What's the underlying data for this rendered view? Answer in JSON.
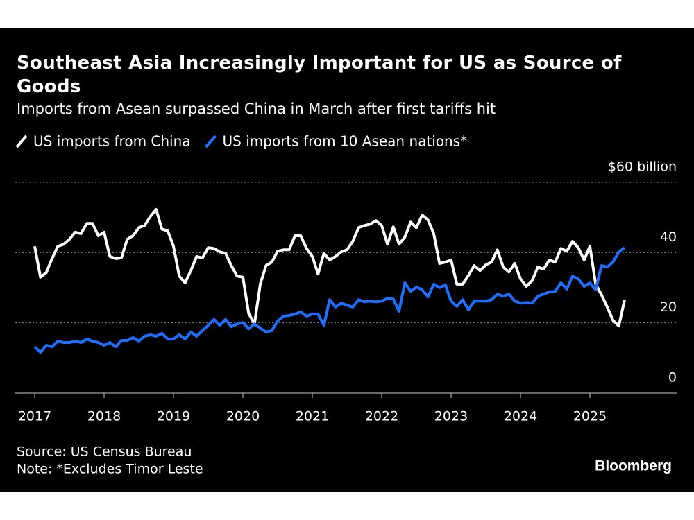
{
  "chart_data": {
    "type": "line",
    "title": "Southeast Asia Increasingly Important for US as Source of Goods",
    "subtitle": "Imports from Asean surpassed China in March after first tariffs hit",
    "categories": [
      "2017",
      null,
      null,
      null,
      null,
      null,
      null,
      null,
      null,
      null,
      null,
      null,
      "2018",
      null,
      null,
      null,
      null,
      null,
      null,
      null,
      null,
      null,
      null,
      null,
      "2019",
      null,
      null,
      null,
      null,
      null,
      null,
      null,
      null,
      null,
      null,
      null,
      "2020",
      null,
      null,
      null,
      null,
      null,
      null,
      null,
      null,
      null,
      null,
      null,
      "2021",
      null,
      null,
      null,
      null,
      null,
      null,
      null,
      null,
      null,
      null,
      null,
      "2022",
      null,
      null,
      null,
      null,
      null,
      null,
      null,
      null,
      null,
      null,
      null,
      "2023",
      null,
      null,
      null,
      null,
      null,
      null,
      null,
      null,
      null,
      null,
      null,
      "2024",
      null,
      null,
      null,
      null,
      null,
      null,
      null,
      null,
      null,
      null,
      null,
      "2025",
      null,
      null,
      null,
      null,
      null,
      null
    ],
    "series": [
      {
        "name": "US imports from China",
        "color": "#ffffff",
        "values": [
          41.8,
          33,
          34.3,
          38.3,
          41.8,
          42.4,
          43.8,
          45.8,
          45.4,
          48.3,
          48.3,
          44.8,
          45.8,
          38.9,
          38.3,
          38.5,
          43.8,
          44.8,
          47.1,
          47.7,
          50.3,
          52.3,
          46.7,
          46.2,
          41.8,
          33.3,
          31.4,
          34.9,
          38.9,
          38.5,
          41.4,
          41.2,
          40.2,
          39.8,
          36.3,
          33.3,
          33,
          22.7,
          19.7,
          31,
          36.3,
          37.3,
          40.4,
          40.8,
          40.8,
          44.8,
          44.8,
          41.2,
          38.9,
          33.9,
          39.8,
          37.9,
          38.9,
          40.2,
          40.8,
          43.2,
          47.1,
          47.7,
          48.1,
          49.1,
          47.7,
          42.4,
          47.3,
          42.4,
          44.4,
          48.7,
          47.1,
          50.7,
          49.3,
          45.4,
          36.9,
          37.3,
          37.9,
          31,
          31,
          33.5,
          36.3,
          34.9,
          36.5,
          37.3,
          40.8,
          35.9,
          34.5,
          36.9,
          32.5,
          30.4,
          32,
          35.9,
          35.3,
          37.9,
          37.3,
          41.2,
          40.4,
          43.2,
          41.4,
          37.9,
          41.8,
          31,
          28,
          24.5,
          20.7,
          19.1,
          26.6
        ]
      },
      {
        "name": "US imports from 10 Asean nations*",
        "color": "#1f6fff",
        "values": [
          13.2,
          11.6,
          13.6,
          13.2,
          14.8,
          14.4,
          14.4,
          14.8,
          14.4,
          15.4,
          14.8,
          14.4,
          13.6,
          14.4,
          13.2,
          15,
          15,
          15.8,
          14.8,
          16.2,
          16.6,
          16.2,
          17,
          15.4,
          15.4,
          16.6,
          15.4,
          17.4,
          16.2,
          17.8,
          19.3,
          21,
          19.3,
          21,
          18.9,
          19.7,
          20.1,
          18.3,
          19.7,
          18.5,
          17.4,
          17.8,
          20.5,
          21.9,
          22.1,
          22.5,
          23.1,
          21.9,
          22.5,
          22.5,
          19.3,
          26.6,
          24.5,
          25.6,
          25,
          24.5,
          26.6,
          26,
          26.2,
          26,
          26.2,
          27,
          26.8,
          23.3,
          31.4,
          29,
          30.2,
          29.4,
          27.4,
          31,
          30,
          30.8,
          26.2,
          24.7,
          26.6,
          23.7,
          26.2,
          26.2,
          26.2,
          26.6,
          28.2,
          27.6,
          28.2,
          26.2,
          25.6,
          25.8,
          25.6,
          27.6,
          28.2,
          28.8,
          29,
          31.4,
          29.6,
          33.3,
          32.5,
          30.4,
          31.4,
          29.4,
          36.3,
          35.9,
          37.3,
          40.2,
          41.4
        ]
      }
    ],
    "ylim": [
      0,
      60
    ],
    "yticks": [
      0,
      20,
      40,
      {
        "value": 60,
        "label": "$60 billion"
      }
    ],
    "grid": true,
    "source": "Source: US Census Bureau",
    "note": "Note: *Excludes Timor Leste",
    "brand": "Bloomberg"
  }
}
